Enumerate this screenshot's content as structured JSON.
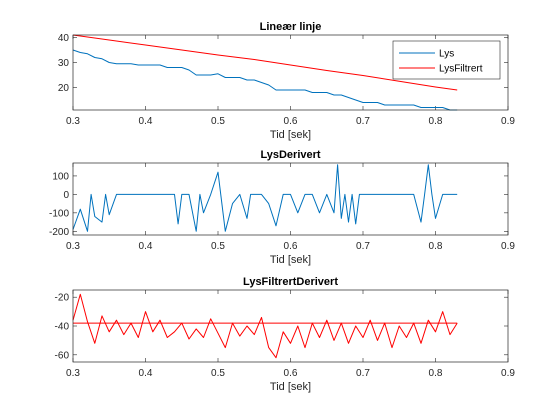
{
  "chart_data": [
    {
      "type": "line",
      "title": "Lineær linje",
      "xlabel": "Tid [sek]",
      "ylabel": "",
      "xlim": [
        0.3,
        0.9
      ],
      "ylim": [
        11,
        41
      ],
      "xticks": [
        "0.3",
        "0.4",
        "0.5",
        "0.6",
        "0.7",
        "0.8",
        "0.9"
      ],
      "yticks": [
        "20",
        "30",
        "40"
      ],
      "legend_position": "top-right",
      "series": [
        {
          "name": "Lys",
          "color": "#0072BD",
          "x": [
            0.3,
            0.31,
            0.32,
            0.33,
            0.34,
            0.35,
            0.36,
            0.37,
            0.38,
            0.39,
            0.4,
            0.41,
            0.42,
            0.43,
            0.44,
            0.45,
            0.46,
            0.47,
            0.48,
            0.49,
            0.5,
            0.51,
            0.52,
            0.53,
            0.54,
            0.55,
            0.56,
            0.57,
            0.58,
            0.59,
            0.6,
            0.61,
            0.62,
            0.63,
            0.64,
            0.65,
            0.66,
            0.67,
            0.68,
            0.69,
            0.7,
            0.71,
            0.72,
            0.73,
            0.74,
            0.75,
            0.76,
            0.77,
            0.78,
            0.79,
            0.8,
            0.81,
            0.82,
            0.83
          ],
          "y": [
            35,
            34,
            33.5,
            32,
            31.5,
            30,
            29.5,
            29.5,
            29.5,
            29,
            29,
            29,
            29,
            28,
            28,
            28,
            27,
            25,
            25,
            25,
            25.5,
            24,
            24,
            24,
            23,
            23,
            22,
            21,
            19,
            19,
            19,
            19,
            19,
            18,
            18,
            18,
            17,
            17,
            16,
            15,
            14,
            14,
            14,
            13,
            13,
            13,
            13,
            13,
            12,
            12,
            12,
            12,
            11,
            11
          ]
        },
        {
          "name": "LysFiltrert",
          "color": "#FF0000",
          "x": [
            0.3,
            0.35,
            0.4,
            0.45,
            0.5,
            0.55,
            0.6,
            0.65,
            0.7,
            0.75,
            0.8,
            0.83
          ],
          "y": [
            41,
            39,
            37,
            35,
            33,
            31.2,
            29,
            26.8,
            24.8,
            22.5,
            20.2,
            19
          ]
        }
      ]
    },
    {
      "type": "line",
      "title": "LysDerivert",
      "xlabel": "Tid [sek]",
      "ylabel": "",
      "xlim": [
        0.3,
        0.9
      ],
      "ylim": [
        -220,
        170
      ],
      "xticks": [
        "0.3",
        "0.4",
        "0.5",
        "0.6",
        "0.7",
        "0.8",
        "0.9"
      ],
      "yticks": [
        "-200",
        "-100",
        "0",
        "100"
      ],
      "series": [
        {
          "color": "#0072BD",
          "x": [
            0.3,
            0.31,
            0.32,
            0.325,
            0.33,
            0.34,
            0.345,
            0.35,
            0.36,
            0.37,
            0.38,
            0.39,
            0.4,
            0.41,
            0.42,
            0.43,
            0.44,
            0.445,
            0.45,
            0.46,
            0.47,
            0.475,
            0.48,
            0.49,
            0.5,
            0.51,
            0.52,
            0.53,
            0.54,
            0.545,
            0.55,
            0.56,
            0.57,
            0.58,
            0.59,
            0.6,
            0.61,
            0.62,
            0.63,
            0.64,
            0.65,
            0.66,
            0.665,
            0.67,
            0.675,
            0.68,
            0.685,
            0.69,
            0.695,
            0.7,
            0.71,
            0.72,
            0.73,
            0.74,
            0.75,
            0.76,
            0.77,
            0.78,
            0.785,
            0.79,
            0.795,
            0.8,
            0.81,
            0.82,
            0.83
          ],
          "y": [
            -190,
            -80,
            -200,
            0,
            -120,
            -150,
            0,
            -110,
            0,
            0,
            0,
            0,
            0,
            0,
            0,
            0,
            0,
            -160,
            0,
            0,
            -200,
            0,
            -100,
            0,
            120,
            -200,
            -50,
            0,
            -130,
            0,
            0,
            0,
            -50,
            -170,
            0,
            0,
            -100,
            0,
            0,
            -100,
            0,
            -100,
            160,
            -130,
            0,
            -150,
            0,
            -160,
            0,
            0,
            0,
            0,
            0,
            0,
            0,
            0,
            0,
            -150,
            0,
            160,
            0,
            -130,
            0,
            0,
            0
          ]
        }
      ]
    },
    {
      "type": "line",
      "title": "LysFiltrertDerivert",
      "xlabel": "Tid [sek]",
      "ylabel": "",
      "xlim": [
        0.3,
        0.9
      ],
      "ylim": [
        -65,
        -15
      ],
      "xticks": [
        "0.3",
        "0.4",
        "0.5",
        "0.6",
        "0.7",
        "0.8",
        "0.9"
      ],
      "yticks": [
        "-20",
        "-40",
        "-60"
      ],
      "series": [
        {
          "color": "#FF0000",
          "x": [
            0.3,
            0.31,
            0.32,
            0.33,
            0.34,
            0.35,
            0.36,
            0.37,
            0.38,
            0.39,
            0.4,
            0.41,
            0.42,
            0.43,
            0.44,
            0.45,
            0.46,
            0.47,
            0.48,
            0.49,
            0.5,
            0.51,
            0.52,
            0.53,
            0.54,
            0.55,
            0.56,
            0.57,
            0.58,
            0.59,
            0.6,
            0.61,
            0.62,
            0.63,
            0.64,
            0.65,
            0.66,
            0.67,
            0.68,
            0.69,
            0.7,
            0.71,
            0.72,
            0.73,
            0.74,
            0.75,
            0.76,
            0.77,
            0.78,
            0.79,
            0.8,
            0.81,
            0.82,
            0.83
          ],
          "y": [
            -36,
            -18,
            -37,
            -52,
            -33,
            -44,
            -36,
            -46,
            -38,
            -48,
            -30,
            -44,
            -36,
            -48,
            -44,
            -38,
            -49,
            -42,
            -48,
            -35,
            -45,
            -55,
            -38,
            -47,
            -40,
            -46,
            -34,
            -55,
            -62,
            -44,
            -52,
            -40,
            -55,
            -38,
            -48,
            -36,
            -50,
            -38,
            -52,
            -40,
            -48,
            -36,
            -50,
            -38,
            -55,
            -40,
            -48,
            -38,
            -52,
            -36,
            -44,
            -30,
            -46,
            -38
          ]
        },
        {
          "color": "#FF0000",
          "x": [
            0.3,
            0.83
          ],
          "y": [
            -38,
            -38
          ]
        }
      ]
    }
  ]
}
